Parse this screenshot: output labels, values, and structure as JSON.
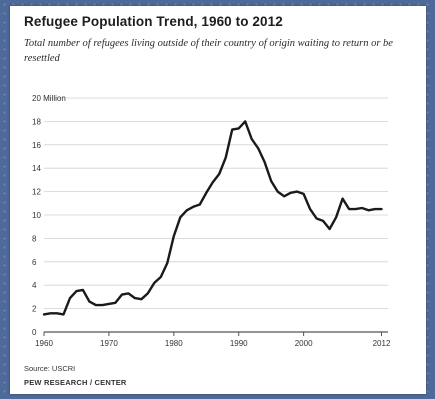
{
  "chart_data": {
    "type": "line",
    "title": "Refugee Population Trend, 1960 to 2012",
    "subtitle": "Total number of refugees living outside of their country of origin waiting to return or be resettled",
    "ylabel": "20 Million",
    "xlabel": "",
    "xlim": [
      1960,
      2013
    ],
    "ylim": [
      0,
      20
    ],
    "x_ticks": [
      "1960",
      "1970",
      "1980",
      "1990",
      "2000",
      "2012"
    ],
    "x_tick_values": [
      1960,
      1970,
      1980,
      1990,
      2000,
      2012
    ],
    "y_ticks": [
      "20 Million",
      "18",
      "16",
      "14",
      "12",
      "10",
      "8",
      "6",
      "4",
      "2",
      "0"
    ],
    "y_tick_values": [
      20,
      18,
      16,
      14,
      12,
      10,
      8,
      6,
      4,
      2,
      0
    ],
    "grid": true,
    "line_color": "#1a1a1a",
    "series": [
      {
        "x": [
          1960,
          1961,
          1962,
          1963,
          1964,
          1965,
          1966,
          1967,
          1968,
          1969,
          1970,
          1971,
          1972,
          1973,
          1974,
          1975,
          1976,
          1977,
          1978,
          1979,
          1980,
          1981,
          1982,
          1983,
          1984,
          1985,
          1986,
          1987,
          1988,
          1989,
          1990,
          1991,
          1992,
          1993,
          1994,
          1995,
          1996,
          1997,
          1998,
          1999,
          2000,
          2001,
          2002,
          2003,
          2004,
          2005,
          2006,
          2007,
          2008,
          2009,
          2010,
          2011,
          2012
        ],
        "values": [
          1.5,
          1.6,
          1.6,
          1.5,
          2.9,
          3.5,
          3.6,
          2.6,
          2.3,
          2.3,
          2.4,
          2.5,
          3.2,
          3.3,
          2.9,
          2.8,
          3.3,
          4.2,
          4.7,
          5.9,
          8.2,
          9.8,
          10.4,
          10.7,
          10.9,
          11.9,
          12.8,
          13.5,
          14.9,
          17.3,
          17.4,
          18.0,
          16.5,
          15.7,
          14.5,
          12.9,
          12.0,
          11.6,
          11.9,
          12.0,
          11.8,
          10.5,
          9.7,
          9.5,
          8.8,
          9.8,
          11.4,
          10.5,
          10.5,
          10.6,
          10.4,
          10.5,
          10.5
        ]
      }
    ]
  },
  "footer": {
    "source": "Source: USCRI",
    "credit": "PEW RESEARCH / CENTER"
  }
}
